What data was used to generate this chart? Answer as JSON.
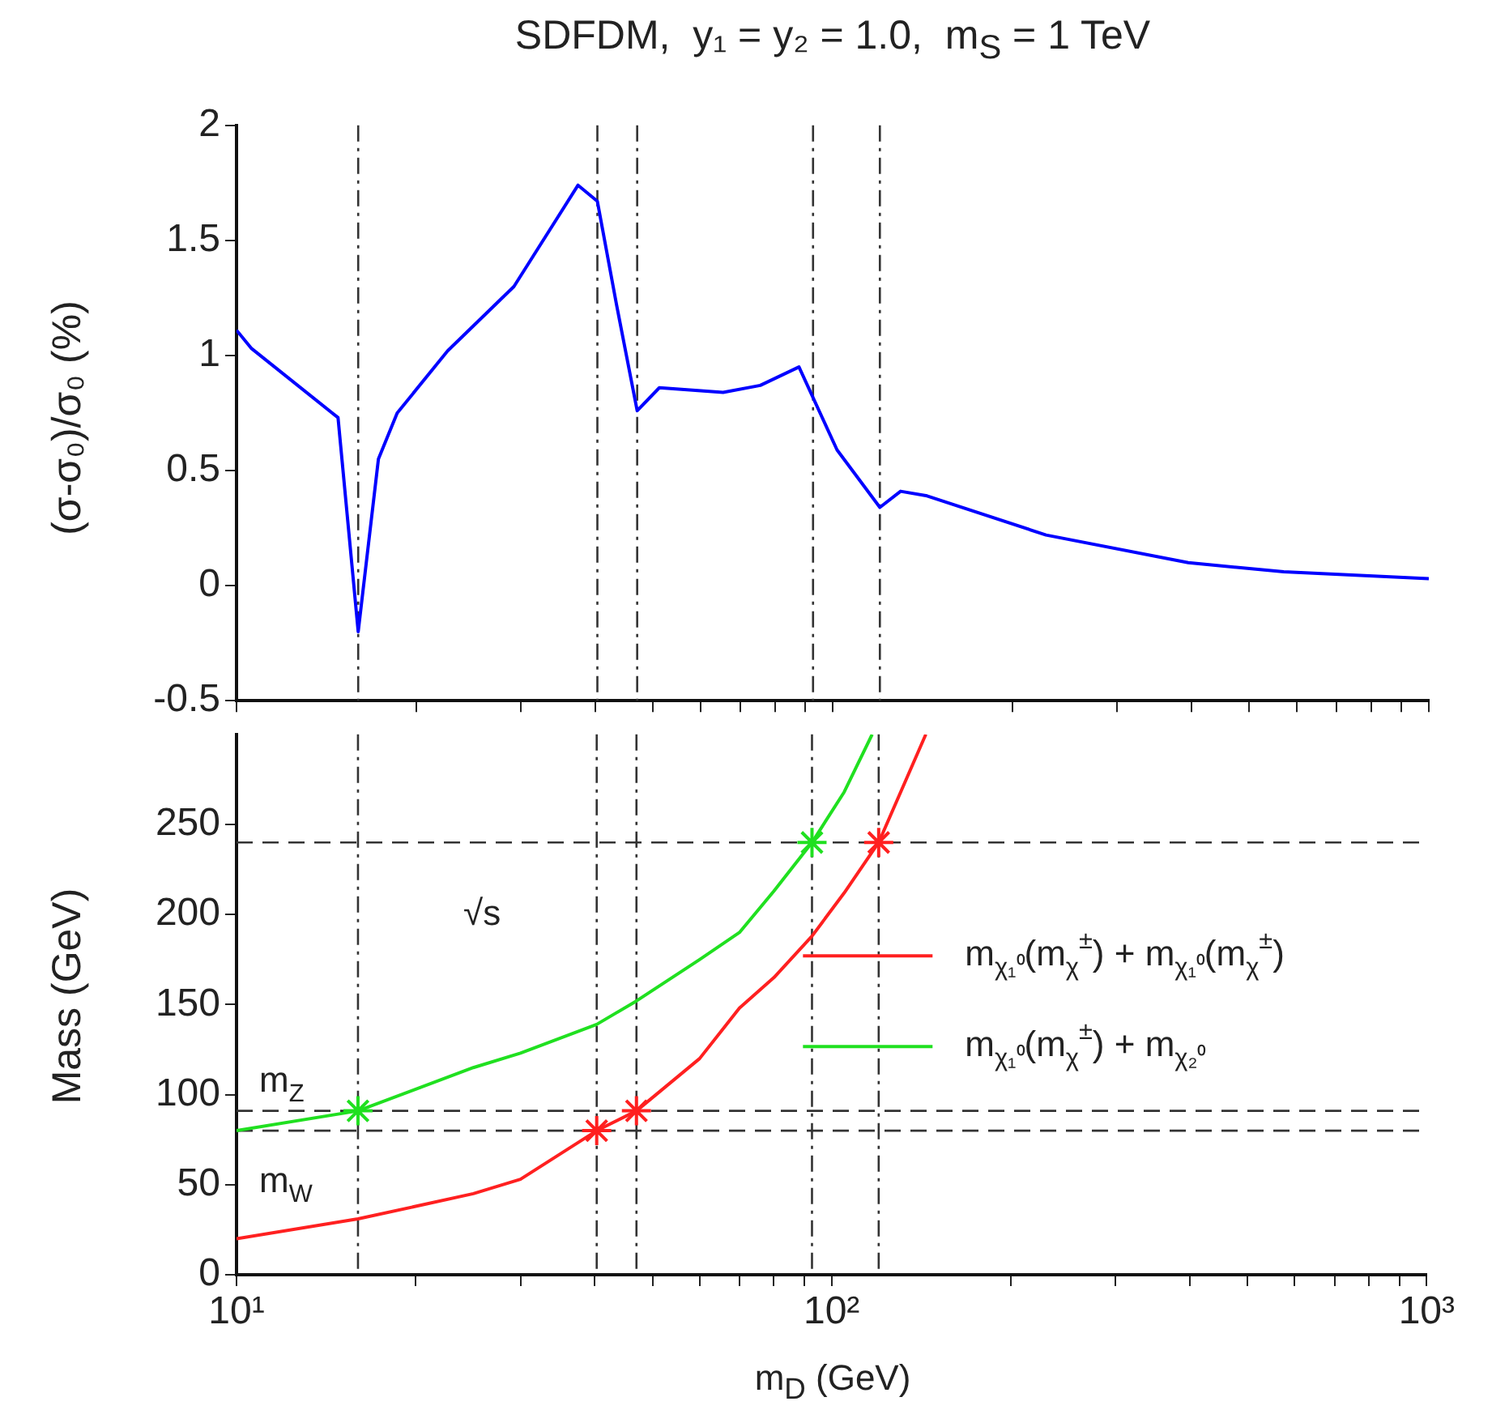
{
  "chart_data": [
    {
      "type": "line",
      "title": "SDFDM,  y₁ = y₂ = 1.0,  m$_{S}$ = 1 TeV",
      "ylabel": "(σ-σ₀)/σ₀ (%)",
      "log": "x",
      "grid": false,
      "legend": false,
      "tick_labels": "y",
      "xlim": [
        10,
        1000
      ],
      "xticks": [
        {
          "value": 10,
          "label": null
        },
        {
          "value": 20,
          "label": null
        },
        {
          "value": 30,
          "label": null
        },
        {
          "value": 40,
          "label": null
        },
        {
          "value": 50,
          "label": null
        },
        {
          "value": 60,
          "label": null
        },
        {
          "value": 70,
          "label": null
        },
        {
          "value": 80,
          "label": null
        },
        {
          "value": 90,
          "label": null
        },
        {
          "value": 100,
          "label": null
        },
        {
          "value": 200,
          "label": null
        },
        {
          "value": 300,
          "label": null
        },
        {
          "value": 400,
          "label": null
        },
        {
          "value": 500,
          "label": null
        },
        {
          "value": 600,
          "label": null
        },
        {
          "value": 700,
          "label": null
        },
        {
          "value": 800,
          "label": null
        },
        {
          "value": 900,
          "label": null
        },
        {
          "value": 1000,
          "label": null
        }
      ],
      "ylim": [
        -0.5,
        2
      ],
      "yticks": [
        -0.5,
        0,
        0.5,
        1,
        1.5,
        2
      ],
      "series": [
        {
          "color": "#0000ff",
          "x": [
            10,
            10.6,
            14.8,
            16.0,
            17.3,
            18.6,
            22.6,
            29.2,
            37.4,
            40.3,
            43.4,
            47.0,
            51.2,
            65.5,
            75.6,
            87.8,
            101.7,
            120,
            130,
            144,
            228,
            395,
            571,
            1000
          ],
          "values": [
            1.11,
            1.03,
            0.73,
            -0.2,
            0.55,
            0.75,
            1.02,
            1.3,
            1.74,
            1.67,
            1.22,
            0.76,
            0.86,
            0.84,
            0.87,
            0.95,
            0.59,
            0.34,
            0.41,
            0.39,
            0.22,
            0.1,
            0.06,
            0.03
          ]
        }
      ],
      "ref_lines": [
        {
          "axis": "x",
          "value": 16.0,
          "color": "#333333",
          "line_style": "dashdot"
        },
        {
          "axis": "x",
          "value": 40.3,
          "color": "#333333",
          "line_style": "dashdot"
        },
        {
          "axis": "x",
          "value": 47.0,
          "color": "#333333",
          "line_style": "dashdot"
        },
        {
          "axis": "x",
          "value": 92.7,
          "color": "#333333",
          "line_style": "dashdot"
        },
        {
          "axis": "x",
          "value": 120,
          "color": "#333333",
          "line_style": "dashdot"
        }
      ]
    },
    {
      "type": "line",
      "xlabel": "m$_{D}$ (GeV)",
      "ylabel": "Mass (GeV)",
      "log": "x",
      "grid": false,
      "legend": "right",
      "xlim": [
        10,
        1000
      ],
      "xticks": [
        {
          "value": 10,
          "label": "10¹"
        },
        {
          "value": 20,
          "label": null
        },
        {
          "value": 30,
          "label": null
        },
        {
          "value": 40,
          "label": null
        },
        {
          "value": 50,
          "label": null
        },
        {
          "value": 60,
          "label": null
        },
        {
          "value": 70,
          "label": null
        },
        {
          "value": 80,
          "label": null
        },
        {
          "value": 90,
          "label": null
        },
        {
          "value": 100,
          "label": "10²"
        },
        {
          "value": 200,
          "label": null
        },
        {
          "value": 300,
          "label": null
        },
        {
          "value": 400,
          "label": null
        },
        {
          "value": 500,
          "label": null
        },
        {
          "value": 600,
          "label": null
        },
        {
          "value": 700,
          "label": null
        },
        {
          "value": 800,
          "label": null
        },
        {
          "value": 900,
          "label": null
        },
        {
          "value": 1000,
          "label": "10³"
        }
      ],
      "ylim": [
        0,
        300
      ],
      "yticks": [
        0,
        50,
        100,
        150,
        200,
        250
      ],
      "series": [
        {
          "name": "m$_{χ₁⁰}$(m$_{χ}$$^{±}$) + m$_{χ₁⁰}$(m$_{χ}$$^{±}$)",
          "color": "#ff2020",
          "x": [
            10,
            16,
            25,
            30,
            40.3,
            47,
            60,
            70,
            80,
            92.7,
            105,
            120,
            144
          ],
          "values": [
            20,
            31,
            45,
            53,
            80,
            91,
            120,
            148,
            165,
            188,
            212,
            240,
            300
          ]
        },
        {
          "name": "m$_{χ₁⁰}$(m$_{χ}$$^{±}$) + m$_{χ₂⁰}$",
          "color": "#20e020",
          "x": [
            10,
            16,
            25,
            30,
            40.3,
            47,
            60,
            70,
            80,
            92.7,
            105,
            117
          ],
          "values": [
            80,
            91,
            115,
            123,
            139,
            152,
            175,
            190,
            213,
            240,
            268,
            300
          ]
        },
        {
          "type": "scatter",
          "marker": "cross",
          "color": "#ff2020",
          "x": [
            40.3,
            47,
            120
          ],
          "values": [
            80,
            91,
            240
          ]
        },
        {
          "type": "scatter",
          "marker": "cross",
          "color": "#20e020",
          "x": [
            16,
            92.7
          ],
          "values": [
            91,
            240
          ]
        }
      ],
      "ref_lines": [
        {
          "axis": "y",
          "value": 240,
          "label": "√s",
          "color": "#333333",
          "line_style": "dashed"
        },
        {
          "axis": "y",
          "value": 91,
          "label": "m$_{Z}$",
          "color": "#333333",
          "line_style": "dashed"
        },
        {
          "axis": "y",
          "value": 80,
          "label": "m$_{W}$",
          "color": "#333333",
          "line_style": "dashed"
        },
        {
          "axis": "x",
          "value": 16.0,
          "color": "#333333",
          "line_style": "dashdot"
        },
        {
          "axis": "x",
          "value": 40.3,
          "color": "#333333",
          "line_style": "dashdot"
        },
        {
          "axis": "x",
          "value": 47.0,
          "color": "#333333",
          "line_style": "dashdot"
        },
        {
          "axis": "x",
          "value": 92.7,
          "color": "#333333",
          "line_style": "dashdot"
        },
        {
          "axis": "x",
          "value": 120,
          "color": "#333333",
          "line_style": "dashdot"
        }
      ]
    }
  ]
}
